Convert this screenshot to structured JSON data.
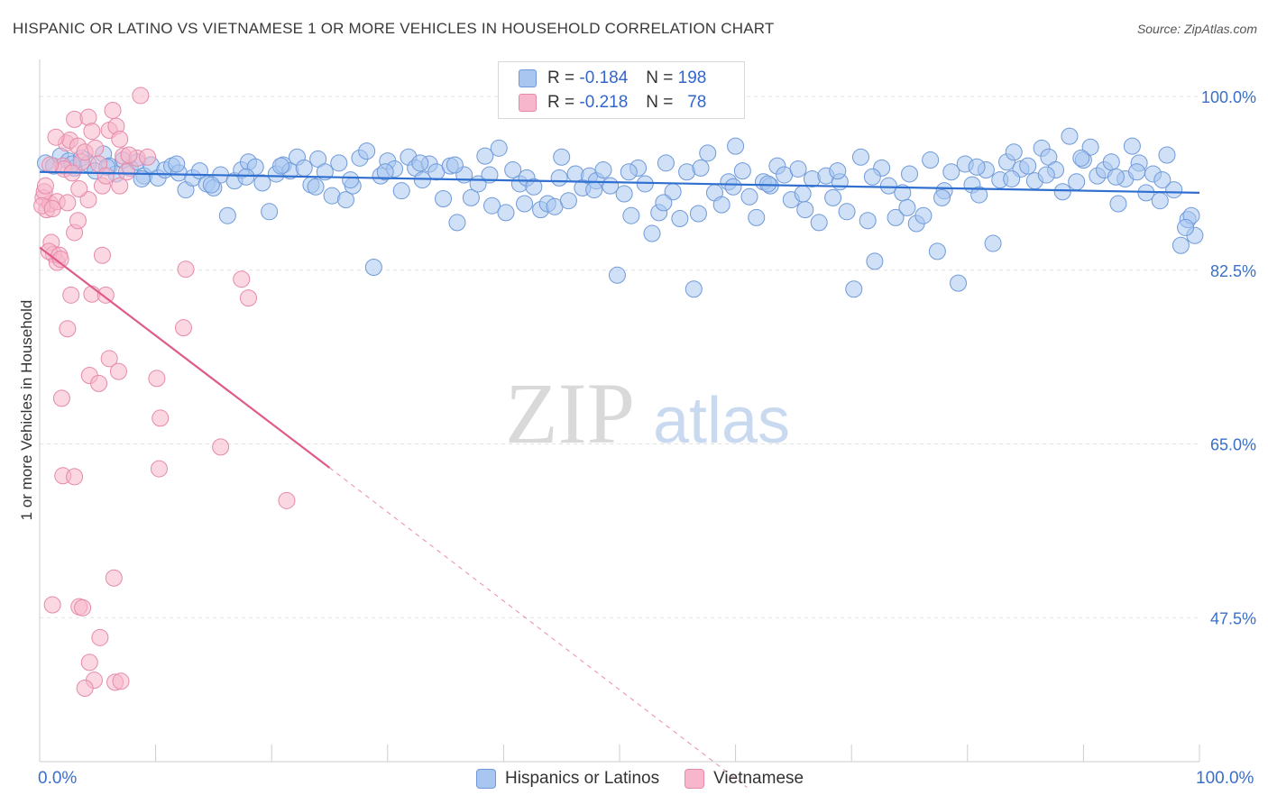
{
  "title": "HISPANIC OR LATINO VS VIETNAMESE 1 OR MORE VEHICLES IN HOUSEHOLD CORRELATION CHART",
  "source": "Source: ZipAtlas.com",
  "watermark": {
    "zip": "ZIP",
    "atlas": "atlas"
  },
  "legend_stats": [
    {
      "r_label": "R = ",
      "r_value": "-0.184",
      "n_label": "N = ",
      "n_value": "198",
      "color": "#a8c6f0",
      "border": "#6f9ad9"
    },
    {
      "r_label": "R = ",
      "r_value": "-0.218",
      "n_label": "N = ",
      "n_value": "78",
      "color": "#f7b6cb",
      "border": "#e58aa9"
    }
  ],
  "chart_data": {
    "type": "scatter",
    "title": "HISPANIC OR LATINO VS VIETNAMESE 1 OR MORE VEHICLES IN HOUSEHOLD CORRELATION CHART",
    "xlabel": "",
    "ylabel": "1 or more Vehicles in Household",
    "xlim": [
      0,
      100
    ],
    "ylim": [
      33,
      103
    ],
    "x_tick_labels": [
      "0.0%",
      "100.0%"
    ],
    "y_ticks": [
      100.0,
      82.5,
      65.0,
      47.5
    ],
    "y_tick_labels": [
      "100.0%",
      "82.5%",
      "65.0%",
      "47.5%"
    ],
    "grid": true,
    "legend_position": "bottom-center",
    "series": [
      {
        "name": "Hispanics or Latinos",
        "color": "#a8c6f0",
        "edge": "#6f9ad9",
        "line_color": "#2f6fd0",
        "trend": {
          "x": [
            0,
            100
          ],
          "y": [
            92.4,
            90.3
          ]
        },
        "points": [
          [
            0.5,
            93.3
          ],
          [
            1.2,
            93.0
          ],
          [
            1.8,
            94.0
          ],
          [
            2.5,
            93.5
          ],
          [
            3.0,
            92.8
          ],
          [
            3.6,
            93.8
          ],
          [
            4.2,
            93.2
          ],
          [
            4.8,
            92.5
          ],
          [
            5.5,
            94.2
          ],
          [
            6.0,
            93.0
          ],
          [
            6.6,
            92.2
          ],
          [
            7.2,
            93.6
          ],
          [
            7.8,
            92.8
          ],
          [
            8.4,
            93.4
          ],
          [
            9.0,
            92.0
          ],
          [
            9.6,
            93.1
          ],
          [
            10.2,
            91.8
          ],
          [
            10.8,
            92.6
          ],
          [
            11.4,
            93.0
          ],
          [
            12.0,
            92.3
          ],
          [
            12.6,
            90.6
          ],
          [
            13.2,
            91.8
          ],
          [
            13.8,
            92.5
          ],
          [
            14.4,
            91.2
          ],
          [
            15.0,
            90.8
          ],
          [
            15.6,
            92.1
          ],
          [
            16.2,
            88.0
          ],
          [
            16.8,
            91.5
          ],
          [
            17.4,
            92.6
          ],
          [
            18.0,
            93.4
          ],
          [
            18.6,
            92.9
          ],
          [
            19.2,
            91.3
          ],
          [
            19.8,
            88.4
          ],
          [
            20.4,
            92.2
          ],
          [
            21.0,
            93.1
          ],
          [
            21.6,
            92.5
          ],
          [
            22.2,
            93.9
          ],
          [
            22.8,
            92.8
          ],
          [
            23.4,
            91.1
          ],
          [
            24.0,
            93.7
          ],
          [
            24.6,
            92.4
          ],
          [
            25.2,
            90.0
          ],
          [
            25.8,
            93.3
          ],
          [
            26.4,
            89.6
          ],
          [
            27.0,
            91.0
          ],
          [
            27.6,
            93.8
          ],
          [
            28.2,
            94.5
          ],
          [
            28.8,
            82.8
          ],
          [
            29.4,
            92.0
          ],
          [
            30.0,
            93.5
          ],
          [
            30.6,
            92.7
          ],
          [
            31.2,
            90.5
          ],
          [
            31.8,
            93.9
          ],
          [
            32.4,
            92.8
          ],
          [
            33.0,
            91.6
          ],
          [
            33.6,
            93.2
          ],
          [
            34.2,
            92.4
          ],
          [
            34.8,
            89.7
          ],
          [
            35.4,
            93.0
          ],
          [
            36.0,
            87.3
          ],
          [
            36.6,
            92.1
          ],
          [
            37.2,
            89.8
          ],
          [
            37.8,
            91.2
          ],
          [
            38.4,
            94.0
          ],
          [
            39.0,
            89.0
          ],
          [
            39.6,
            94.8
          ],
          [
            40.2,
            88.3
          ],
          [
            40.8,
            92.6
          ],
          [
            41.4,
            91.2
          ],
          [
            42.0,
            91.8
          ],
          [
            42.6,
            90.9
          ],
          [
            43.2,
            88.6
          ],
          [
            43.8,
            89.2
          ],
          [
            44.4,
            88.9
          ],
          [
            45.0,
            93.9
          ],
          [
            45.6,
            89.5
          ],
          [
            46.2,
            92.2
          ],
          [
            46.8,
            90.8
          ],
          [
            47.4,
            92.0
          ],
          [
            48.0,
            91.5
          ],
          [
            48.6,
            92.6
          ],
          [
            49.2,
            91.0
          ],
          [
            49.8,
            82.0
          ],
          [
            50.4,
            90.2
          ],
          [
            51.0,
            88.0
          ],
          [
            51.6,
            92.8
          ],
          [
            52.2,
            91.2
          ],
          [
            52.8,
            86.2
          ],
          [
            53.4,
            88.3
          ],
          [
            54.0,
            93.3
          ],
          [
            54.6,
            90.4
          ],
          [
            55.2,
            87.7
          ],
          [
            55.8,
            92.4
          ],
          [
            56.4,
            80.6
          ],
          [
            57.0,
            92.8
          ],
          [
            57.6,
            94.3
          ],
          [
            58.2,
            90.3
          ],
          [
            58.8,
            89.1
          ],
          [
            59.4,
            91.4
          ],
          [
            60.0,
            95.0
          ],
          [
            60.6,
            92.5
          ],
          [
            61.2,
            89.9
          ],
          [
            61.8,
            87.8
          ],
          [
            62.4,
            91.4
          ],
          [
            63.0,
            91.0
          ],
          [
            63.6,
            93.0
          ],
          [
            64.2,
            92.1
          ],
          [
            64.8,
            89.6
          ],
          [
            65.4,
            92.7
          ],
          [
            66.0,
            88.6
          ],
          [
            66.6,
            91.7
          ],
          [
            67.2,
            87.3
          ],
          [
            67.8,
            92.0
          ],
          [
            68.4,
            89.8
          ],
          [
            69.0,
            91.4
          ],
          [
            69.6,
            88.4
          ],
          [
            70.2,
            80.6
          ],
          [
            70.8,
            93.9
          ],
          [
            71.4,
            87.5
          ],
          [
            72.0,
            83.4
          ],
          [
            72.6,
            92.8
          ],
          [
            73.2,
            91.0
          ],
          [
            73.8,
            87.8
          ],
          [
            74.4,
            90.3
          ],
          [
            75.0,
            92.2
          ],
          [
            75.6,
            87.2
          ],
          [
            76.2,
            88.0
          ],
          [
            76.8,
            93.6
          ],
          [
            77.4,
            84.4
          ],
          [
            78.0,
            90.5
          ],
          [
            78.6,
            92.4
          ],
          [
            79.2,
            81.2
          ],
          [
            79.8,
            93.2
          ],
          [
            80.4,
            91.1
          ],
          [
            81.0,
            90.1
          ],
          [
            81.6,
            92.6
          ],
          [
            82.2,
            85.2
          ],
          [
            82.8,
            91.6
          ],
          [
            83.4,
            93.4
          ],
          [
            84.0,
            94.4
          ],
          [
            84.6,
            92.7
          ],
          [
            85.2,
            93.0
          ],
          [
            85.8,
            91.5
          ],
          [
            86.4,
            94.8
          ],
          [
            87.0,
            93.9
          ],
          [
            87.6,
            92.6
          ],
          [
            88.2,
            90.4
          ],
          [
            88.8,
            96.0
          ],
          [
            89.4,
            91.4
          ],
          [
            90.0,
            93.6
          ],
          [
            90.6,
            94.9
          ],
          [
            91.2,
            92.0
          ],
          [
            91.8,
            92.6
          ],
          [
            92.4,
            93.4
          ],
          [
            93.0,
            89.2
          ],
          [
            93.6,
            91.7
          ],
          [
            94.2,
            95.0
          ],
          [
            94.8,
            93.3
          ],
          [
            95.4,
            90.3
          ],
          [
            96.0,
            92.2
          ],
          [
            96.6,
            89.5
          ],
          [
            97.2,
            94.1
          ],
          [
            97.8,
            90.6
          ],
          [
            98.4,
            85.0
          ],
          [
            99.0,
            87.6
          ],
          [
            99.6,
            86.0
          ],
          [
            99.3,
            88.0
          ],
          [
            98.8,
            86.8
          ],
          [
            96.8,
            91.6
          ],
          [
            94.6,
            92.4
          ],
          [
            92.8,
            91.9
          ],
          [
            89.8,
            93.8
          ],
          [
            86.8,
            92.1
          ],
          [
            83.8,
            91.7
          ],
          [
            80.8,
            92.9
          ],
          [
            77.8,
            89.8
          ],
          [
            74.8,
            88.8
          ],
          [
            71.8,
            91.9
          ],
          [
            68.8,
            92.5
          ],
          [
            65.8,
            90.2
          ],
          [
            62.8,
            91.2
          ],
          [
            59.8,
            90.9
          ],
          [
            56.8,
            88.2
          ],
          [
            53.8,
            89.3
          ],
          [
            50.8,
            92.4
          ],
          [
            47.8,
            90.6
          ],
          [
            44.8,
            91.8
          ],
          [
            41.8,
            89.2
          ],
          [
            38.8,
            92.1
          ],
          [
            35.8,
            93.1
          ],
          [
            32.8,
            93.3
          ],
          [
            29.8,
            92.4
          ],
          [
            26.8,
            91.6
          ],
          [
            23.8,
            90.9
          ],
          [
            20.8,
            93.0
          ],
          [
            17.8,
            91.9
          ],
          [
            14.8,
            91.1
          ],
          [
            11.8,
            93.2
          ],
          [
            8.8,
            91.7
          ],
          [
            5.8,
            92.9
          ],
          [
            2.8,
            93.2
          ]
        ]
      },
      {
        "name": "Vietnamese",
        "color": "#f7b6cb",
        "edge": "#e58aa9",
        "line_color": "#e05a8a",
        "trend": {
          "x": [
            0,
            25
          ],
          "y": [
            84.8,
            62.6
          ]
        },
        "trend_dashed": {
          "x": [
            25,
            61
          ],
          "y": [
            62.6,
            30.4
          ]
        },
        "points": [
          [
            0.3,
            89.8
          ],
          [
            0.6,
            88.6
          ],
          [
            0.9,
            89.2
          ],
          [
            0.4,
            90.4
          ],
          [
            1.0,
            85.3
          ],
          [
            1.2,
            84.1
          ],
          [
            1.5,
            83.3
          ],
          [
            0.8,
            84.4
          ],
          [
            1.7,
            84.0
          ],
          [
            2.0,
            93.0
          ],
          [
            2.3,
            95.3
          ],
          [
            2.6,
            95.6
          ],
          [
            3.0,
            97.7
          ],
          [
            3.3,
            95.0
          ],
          [
            3.6,
            93.4
          ],
          [
            3.9,
            94.4
          ],
          [
            4.2,
            97.9
          ],
          [
            4.5,
            96.5
          ],
          [
            4.8,
            94.8
          ],
          [
            5.1,
            93.2
          ],
          [
            5.4,
            91.0
          ],
          [
            5.7,
            92.0
          ],
          [
            6.0,
            96.6
          ],
          [
            6.3,
            98.6
          ],
          [
            6.6,
            97.0
          ],
          [
            6.9,
            95.7
          ],
          [
            7.2,
            94.0
          ],
          [
            7.5,
            92.4
          ],
          [
            8.4,
            93.8
          ],
          [
            8.7,
            100.1
          ],
          [
            1.5,
            89.4
          ],
          [
            2.4,
            89.3
          ],
          [
            3.0,
            86.3
          ],
          [
            3.3,
            87.5
          ],
          [
            4.2,
            89.6
          ],
          [
            5.4,
            84.0
          ],
          [
            0.2,
            89.0
          ],
          [
            0.5,
            91.0
          ],
          [
            1.8,
            83.6
          ],
          [
            2.7,
            80.0
          ],
          [
            4.5,
            80.1
          ],
          [
            5.7,
            80.0
          ],
          [
            12.6,
            82.6
          ],
          [
            17.4,
            81.6
          ],
          [
            18.0,
            79.7
          ],
          [
            2.4,
            76.6
          ],
          [
            12.4,
            76.7
          ],
          [
            4.3,
            71.9
          ],
          [
            5.1,
            71.1
          ],
          [
            6.0,
            73.6
          ],
          [
            6.8,
            72.3
          ],
          [
            10.1,
            71.6
          ],
          [
            1.9,
            69.6
          ],
          [
            10.4,
            67.6
          ],
          [
            15.6,
            64.7
          ],
          [
            10.3,
            62.5
          ],
          [
            2.0,
            61.8
          ],
          [
            3.0,
            61.7
          ],
          [
            21.3,
            59.3
          ],
          [
            6.4,
            51.5
          ],
          [
            1.1,
            48.8
          ],
          [
            3.4,
            48.6
          ],
          [
            3.7,
            48.5
          ],
          [
            5.2,
            45.5
          ],
          [
            4.3,
            43.0
          ],
          [
            4.7,
            41.2
          ],
          [
            6.5,
            41.0
          ],
          [
            7.0,
            41.1
          ],
          [
            3.9,
            40.4
          ],
          [
            7.7,
            94.1
          ],
          [
            9.3,
            93.9
          ],
          [
            1.4,
            95.9
          ],
          [
            2.1,
            92.7
          ],
          [
            0.9,
            93.1
          ],
          [
            2.8,
            92.3
          ],
          [
            6.9,
            91.0
          ],
          [
            3.4,
            90.7
          ],
          [
            1.1,
            88.7
          ]
        ]
      }
    ]
  }
}
